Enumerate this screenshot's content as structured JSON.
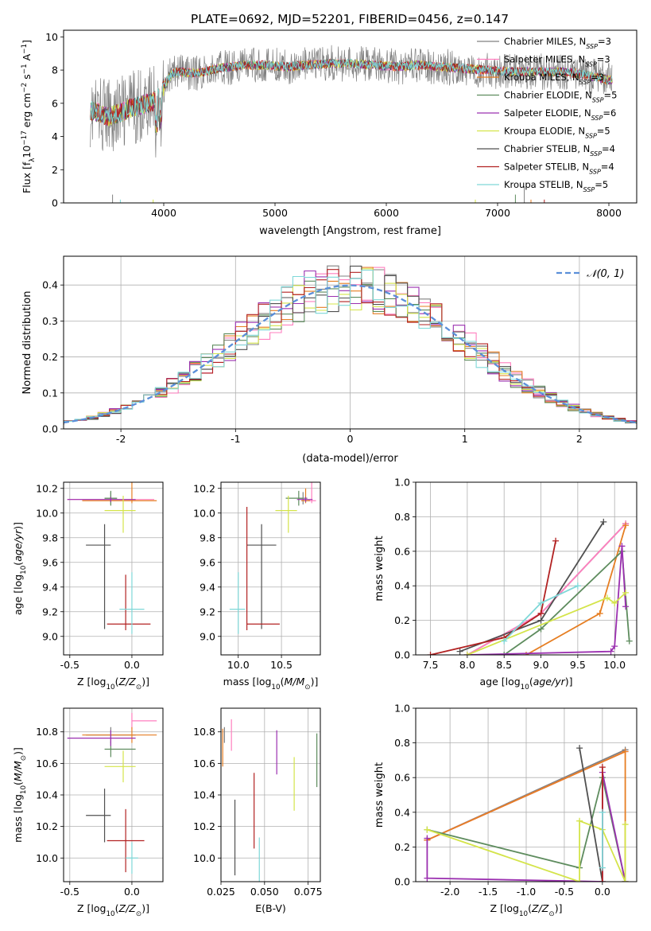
{
  "figure_title": "PLATE=0692, MJD=52201, FIBERID=0456, z=0.147",
  "colors": {
    "Chabrier MILES": "#808080",
    "Salpeter MILES": "#ff7fbf",
    "Kroupa MILES": "#e67e22",
    "Chabrier ELODIE": "#5e8c5e",
    "Salpeter ELODIE": "#9b30b0",
    "Kroupa ELODIE": "#d4e44a",
    "Chabrier STELIB": "#505050",
    "Salpeter STELIB": "#b22222",
    "Kroupa STELIB": "#7fd8d8",
    "gaussian": "#5b8fd9"
  },
  "chart_data": [
    {
      "id": "spectrum",
      "type": "line",
      "title": "PLATE=0692, MJD=52201, FIBERID=0456, z=0.147",
      "xlabel": "wavelength [Angstrom, rest frame]",
      "ylabel": "Flux [f_λ 10^-17 erg cm^-2 s^-1 A^-1]",
      "xlim": [
        3100,
        8250
      ],
      "ylim": [
        0,
        10.4
      ],
      "xticks": [
        4000,
        5000,
        6000,
        7000,
        8000
      ],
      "yticks": [
        0,
        2,
        4,
        6,
        8,
        10
      ],
      "grid": false,
      "legend_position": "right",
      "series": [
        {
          "name": "Chabrier MILES, N_SSP=3",
          "base": "Chabrier MILES"
        },
        {
          "name": "Salpeter MILES, N_SSP=3",
          "base": "Salpeter MILES"
        },
        {
          "name": "Kroupa MILES, N_SSP=3",
          "base": "Kroupa MILES"
        },
        {
          "name": "Chabrier ELODIE, N_SSP=5",
          "base": "Chabrier ELODIE"
        },
        {
          "name": "Salpeter ELODIE, N_SSP=6",
          "base": "Salpeter ELODIE"
        },
        {
          "name": "Kroupa ELODIE, N_SSP=5",
          "base": "Kroupa ELODIE"
        },
        {
          "name": "Chabrier STELIB, N_SSP=4",
          "base": "Chabrier STELIB"
        },
        {
          "name": "Salpeter STELIB, N_SSP=4",
          "base": "Salpeter STELIB"
        },
        {
          "name": "Kroupa STELIB, N_SSP=5",
          "base": "Kroupa STELIB"
        }
      ],
      "continuum": [
        [
          3340,
          5.6
        ],
        [
          3500,
          5.2
        ],
        [
          3600,
          5.4
        ],
        [
          3700,
          5.7
        ],
        [
          3800,
          5.9
        ],
        [
          3900,
          6.1
        ],
        [
          3960,
          6.4
        ],
        [
          4000,
          7.0
        ],
        [
          4050,
          7.6
        ],
        [
          4100,
          7.9
        ],
        [
          4300,
          7.8
        ],
        [
          4500,
          8.1
        ],
        [
          4700,
          8.3
        ],
        [
          4900,
          8.3
        ],
        [
          5100,
          8.2
        ],
        [
          5300,
          8.3
        ],
        [
          5500,
          8.4
        ],
        [
          5700,
          8.4
        ],
        [
          5900,
          8.3
        ],
        [
          6100,
          8.2
        ],
        [
          6300,
          8.3
        ],
        [
          6500,
          8.2
        ],
        [
          6700,
          8.1
        ],
        [
          6900,
          8.0
        ],
        [
          7100,
          7.9
        ],
        [
          7300,
          7.9
        ],
        [
          7600,
          7.9
        ],
        [
          7800,
          7.7
        ],
        [
          8000,
          7.4
        ],
        [
          8030,
          7.4
        ]
      ]
    },
    {
      "id": "residuals",
      "type": "step",
      "xlabel": "(data-model)/error",
      "ylabel": "Normed distribution",
      "xlim": [
        -2.5,
        2.5
      ],
      "ylim": [
        0,
        0.48
      ],
      "xticks": [
        -2,
        -1,
        0,
        1,
        2
      ],
      "yticks": [
        0.0,
        0.1,
        0.2,
        0.3,
        0.4
      ],
      "grid": true,
      "legend_position": "top-right",
      "legend": "𝒩(0, 1)"
    },
    {
      "id": "age_vs_Z",
      "type": "errorbar",
      "xlabel": "Z [log10(Z/Z⊙)]",
      "ylabel": "age [log10(age/yr)]",
      "xlim": [
        -0.55,
        0.25
      ],
      "ylim": [
        8.85,
        10.25
      ],
      "xticks": [
        -0.5,
        0.0
      ],
      "yticks": [
        9.0,
        9.2,
        9.4,
        9.6,
        9.8,
        10.0,
        10.2
      ],
      "grid": true,
      "points": [
        {
          "base": "Chabrier MILES",
          "x": -0.17,
          "xerr": [
            0.05,
            0.05
          ],
          "y": 10.12,
          "yerr": [
            0.05,
            0.05
          ]
        },
        {
          "base": "Salpeter MILES",
          "x": -0.17,
          "xerr": [
            0.35,
            0.35
          ],
          "y": 10.11,
          "yerr": [
            0.02,
            0.02
          ]
        },
        {
          "base": "Kroupa MILES",
          "x": 0.0,
          "xerr": [
            0.4,
            0.2
          ],
          "y": 10.1,
          "yerr": [
            0.02,
            0.15
          ]
        },
        {
          "base": "Chabrier ELODIE",
          "x": -0.17,
          "xerr": [
            0.05,
            0.05
          ],
          "y": 10.12,
          "yerr": [
            0.06,
            0.06
          ]
        },
        {
          "base": "Salpeter ELODIE",
          "x": -0.17,
          "xerr": [
            0.35,
            0.2
          ],
          "y": 10.11,
          "yerr": [
            0.02,
            0.02
          ]
        },
        {
          "base": "Kroupa ELODIE",
          "x": -0.07,
          "xerr": [
            0.15,
            0.1
          ],
          "y": 10.02,
          "yerr": [
            0.18,
            0.12
          ]
        },
        {
          "base": "Chabrier STELIB",
          "x": -0.22,
          "xerr": [
            0.15,
            0.05
          ],
          "y": 9.74,
          "yerr": [
            0.68,
            0.17
          ]
        },
        {
          "base": "Salpeter STELIB",
          "x": -0.05,
          "xerr": [
            0.15,
            0.2
          ],
          "y": 9.1,
          "yerr": [
            0.05,
            0.4
          ]
        },
        {
          "base": "Kroupa STELIB",
          "x": 0.0,
          "xerr": [
            0.1,
            0.1
          ],
          "y": 9.22,
          "yerr": [
            0.2,
            0.3
          ]
        }
      ]
    },
    {
      "id": "age_vs_mass",
      "type": "errorbar",
      "xlabel": "mass [log10(M/M⊙)]",
      "ylabel": "",
      "xlim": [
        9.8,
        10.95
      ],
      "ylim": [
        8.85,
        10.25
      ],
      "xticks": [
        10.0,
        10.5
      ],
      "yticks": [
        9.0,
        9.2,
        9.4,
        9.6,
        9.8,
        10.0,
        10.2
      ],
      "grid": true,
      "points": [
        {
          "base": "Chabrier MILES",
          "x": 10.75,
          "xerr": [
            0.05,
            0.05
          ],
          "y": 10.12,
          "yerr": [
            0.05,
            0.05
          ]
        },
        {
          "base": "Salpeter MILES",
          "x": 10.85,
          "xerr": [
            0.05,
            0.05
          ],
          "y": 10.1,
          "yerr": [
            0.02,
            0.15
          ]
        },
        {
          "base": "Kroupa MILES",
          "x": 10.78,
          "xerr": [
            0.05,
            0.05
          ],
          "y": 10.1,
          "yerr": [
            0.02,
            0.1
          ]
        },
        {
          "base": "Chabrier ELODIE",
          "x": 10.7,
          "xerr": [
            0.15,
            0.05
          ],
          "y": 10.12,
          "yerr": [
            0.06,
            0.06
          ]
        },
        {
          "base": "Salpeter ELODIE",
          "x": 10.78,
          "xerr": [
            0.1,
            0.08
          ],
          "y": 10.11,
          "yerr": [
            0.02,
            0.02
          ]
        },
        {
          "base": "Kroupa ELODIE",
          "x": 10.58,
          "xerr": [
            0.15,
            0.1
          ],
          "y": 10.02,
          "yerr": [
            0.18,
            0.12
          ]
        },
        {
          "base": "Chabrier STELIB",
          "x": 10.27,
          "xerr": [
            0.17,
            0.17
          ],
          "y": 9.74,
          "yerr": [
            0.68,
            0.17
          ]
        },
        {
          "base": "Salpeter STELIB",
          "x": 10.1,
          "xerr": [
            0.0,
            0.38
          ],
          "y": 9.1,
          "yerr": [
            0.05,
            0.95
          ]
        },
        {
          "base": "Kroupa STELIB",
          "x": 10.0,
          "xerr": [
            0.1,
            0.08
          ],
          "y": 9.22,
          "yerr": [
            0.2,
            0.3
          ]
        }
      ]
    },
    {
      "id": "mass_weight_vs_age",
      "type": "line",
      "xlabel": "age [log10(age/yr)]",
      "ylabel": "mass weight",
      "xlim": [
        7.3,
        10.3
      ],
      "ylim": [
        0,
        1.0
      ],
      "xticks": [
        7.5,
        8.0,
        8.5,
        9.0,
        9.5,
        10.0
      ],
      "yticks": [
        0.0,
        0.2,
        0.4,
        0.6,
        0.8,
        1.0
      ],
      "grid": true,
      "series": [
        {
          "base": "Chabrier MILES",
          "x": [
            8.0,
            9.0,
            10.15
          ],
          "y": [
            0.0,
            0.24,
            0.76
          ]
        },
        {
          "base": "Salpeter MILES",
          "x": [
            8.0,
            9.0,
            10.15
          ],
          "y": [
            0.0,
            0.24,
            0.76
          ]
        },
        {
          "base": "Kroupa MILES",
          "x": [
            8.8,
            9.8,
            10.15
          ],
          "y": [
            0.0,
            0.24,
            0.75
          ]
        },
        {
          "base": "Chabrier ELODIE",
          "x": [
            8.5,
            9.0,
            10.1,
            10.2
          ],
          "y": [
            0.0,
            0.15,
            0.6,
            0.08
          ]
        },
        {
          "base": "Salpeter ELODIE",
          "x": [
            8.0,
            9.95,
            10.0,
            10.1,
            10.15
          ],
          "y": [
            0.0,
            0.02,
            0.05,
            0.63,
            0.28
          ]
        },
        {
          "base": "Kroupa ELODIE",
          "x": [
            8.0,
            9.9,
            10.0,
            10.15
          ],
          "y": [
            0.0,
            0.33,
            0.3,
            0.36
          ]
        },
        {
          "base": "Chabrier STELIB",
          "x": [
            7.9,
            9.0,
            9.85
          ],
          "y": [
            0.02,
            0.2,
            0.77
          ]
        },
        {
          "base": "Salpeter STELIB",
          "x": [
            7.5,
            8.5,
            9.0,
            9.2
          ],
          "y": [
            0.0,
            0.1,
            0.24,
            0.66
          ]
        },
        {
          "base": "Kroupa STELIB",
          "x": [
            8.5,
            9.0,
            9.5
          ],
          "y": [
            0.08,
            0.3,
            0.4
          ]
        }
      ]
    },
    {
      "id": "mass_vs_Z",
      "type": "errorbar",
      "xlabel": "Z [log10(Z/Z⊙)]",
      "ylabel": "mass [log10(M/M⊙)]",
      "xlim": [
        -0.55,
        0.25
      ],
      "ylim": [
        9.85,
        10.95
      ],
      "xticks": [
        -0.5,
        0.0
      ],
      "yticks": [
        10.0,
        10.2,
        10.4,
        10.6,
        10.8
      ],
      "grid": true,
      "points": [
        {
          "base": "Chabrier MILES",
          "x": -0.17,
          "xerr": [
            0.2,
            0.2
          ],
          "y": 10.78,
          "yerr": [
            0.05,
            0.05
          ]
        },
        {
          "base": "Salpeter MILES",
          "x": 0.0,
          "xerr": [
            0.0,
            0.2
          ],
          "y": 10.87,
          "yerr": [
            0.05,
            0.05
          ]
        },
        {
          "base": "Kroupa MILES",
          "x": 0.0,
          "xerr": [
            0.4,
            0.2
          ],
          "y": 10.78,
          "yerr": [
            0.05,
            0.05
          ]
        },
        {
          "base": "Chabrier ELODIE",
          "x": -0.17,
          "xerr": [
            0.05,
            0.2
          ],
          "y": 10.69,
          "yerr": [
            0.05,
            0.05
          ]
        },
        {
          "base": "Salpeter ELODIE",
          "x": -0.17,
          "xerr": [
            0.35,
            0.2
          ],
          "y": 10.76,
          "yerr": [
            0.05,
            0.05
          ]
        },
        {
          "base": "Kroupa ELODIE",
          "x": -0.07,
          "xerr": [
            0.15,
            0.1
          ],
          "y": 10.58,
          "yerr": [
            0.1,
            0.1
          ]
        },
        {
          "base": "Chabrier STELIB",
          "x": -0.22,
          "xerr": [
            0.15,
            0.05
          ],
          "y": 10.27,
          "yerr": [
            0.17,
            0.17
          ]
        },
        {
          "base": "Salpeter STELIB",
          "x": -0.05,
          "xerr": [
            0.15,
            0.15
          ],
          "y": 10.11,
          "yerr": [
            0.2,
            0.2
          ]
        },
        {
          "base": "Kroupa STELIB",
          "x": 0.0,
          "xerr": [
            0.05,
            0.05
          ],
          "y": 10.0,
          "yerr": [
            0.1,
            0.1
          ]
        }
      ]
    },
    {
      "id": "mass_vs_ebv",
      "type": "errorbar",
      "xlabel": "E(B-V)",
      "ylabel": "",
      "xlim": [
        0.025,
        0.082
      ],
      "ylim": [
        9.85,
        10.95
      ],
      "xticks": [
        0.025,
        0.05,
        0.075
      ],
      "yticks": [
        10.0,
        10.2,
        10.4,
        10.6,
        10.8
      ],
      "grid": true,
      "points": [
        {
          "base": "Chabrier MILES",
          "x": 0.027,
          "xerr": [
            0,
            0
          ],
          "y": 10.78,
          "yerr": [
            0.05,
            0.05
          ]
        },
        {
          "base": "Salpeter MILES",
          "x": 0.031,
          "xerr": [
            0,
            0
          ],
          "y": 10.78,
          "yerr": [
            0.1,
            0.1
          ]
        },
        {
          "base": "Kroupa MILES",
          "x": 0.026,
          "xerr": [
            0,
            0
          ],
          "y": 10.7,
          "yerr": [
            0.12,
            0.12
          ]
        },
        {
          "base": "Chabrier ELODIE",
          "x": 0.08,
          "xerr": [
            0,
            0
          ],
          "y": 10.62,
          "yerr": [
            0.17,
            0.17
          ]
        },
        {
          "base": "Salpeter ELODIE",
          "x": 0.057,
          "xerr": [
            0,
            0
          ],
          "y": 10.67,
          "yerr": [
            0.14,
            0.14
          ]
        },
        {
          "base": "Kroupa ELODIE",
          "x": 0.067,
          "xerr": [
            0,
            0
          ],
          "y": 10.47,
          "yerr": [
            0.17,
            0.17
          ]
        },
        {
          "base": "Chabrier STELIB",
          "x": 0.033,
          "xerr": [
            0,
            0
          ],
          "y": 10.13,
          "yerr": [
            0.24,
            0.24
          ]
        },
        {
          "base": "Salpeter STELIB",
          "x": 0.044,
          "xerr": [
            0,
            0
          ],
          "y": 10.3,
          "yerr": [
            0.24,
            0.24
          ]
        },
        {
          "base": "Kroupa STELIB",
          "x": 0.047,
          "xerr": [
            0,
            0
          ],
          "y": 9.99,
          "yerr": [
            0.14,
            0.14
          ]
        }
      ]
    },
    {
      "id": "mass_weight_vs_Z",
      "type": "line",
      "xlabel": "Z [log10(Z/Z⊙)]",
      "ylabel": "mass weight",
      "xlim": [
        -2.45,
        0.45
      ],
      "ylim": [
        0,
        1.0
      ],
      "xticks": [
        -2.0,
        -1.5,
        -1.0,
        -0.5,
        0.0
      ],
      "yticks": [
        0.0,
        0.2,
        0.4,
        0.6,
        0.8,
        1.0
      ],
      "grid": true,
      "series": [
        {
          "base": "Chabrier MILES",
          "x": [
            -2.3,
            0.3
          ],
          "y": [
            0.24,
            0.76
          ]
        },
        {
          "base": "Salpeter MILES",
          "x": [
            -2.3,
            0.3
          ],
          "y": [
            0.24,
            0.75
          ]
        },
        {
          "base": "Kroupa MILES",
          "x": [
            -2.3,
            0.3,
            0.3
          ],
          "y": [
            0.24,
            0.75,
            0.0
          ]
        },
        {
          "base": "Chabrier ELODIE",
          "x": [
            -2.3,
            -0.3,
            0.0,
            0.3
          ],
          "y": [
            0.3,
            0.08,
            0.6,
            0.0
          ]
        },
        {
          "base": "Salpeter ELODIE",
          "x": [
            -2.3,
            -2.3,
            0.0,
            0.0,
            0.3
          ],
          "y": [
            0.25,
            0.02,
            0.0,
            0.63,
            0.0
          ]
        },
        {
          "base": "Kroupa ELODIE",
          "x": [
            -2.3,
            -0.3,
            -0.3,
            0.0,
            0.3,
            0.3
          ],
          "y": [
            0.3,
            0.0,
            0.35,
            0.3,
            0.0,
            0.33
          ]
        },
        {
          "base": "Chabrier STELIB",
          "x": [
            -0.3,
            0.0
          ],
          "y": [
            0.77,
            0.0
          ]
        },
        {
          "base": "Salpeter STELIB",
          "x": [
            0.0,
            0.0
          ],
          "y": [
            0.66,
            0.0
          ]
        },
        {
          "base": "Kroupa STELIB",
          "x": [
            0.0,
            0.0
          ],
          "y": [
            0.4,
            0.08
          ]
        }
      ]
    }
  ]
}
